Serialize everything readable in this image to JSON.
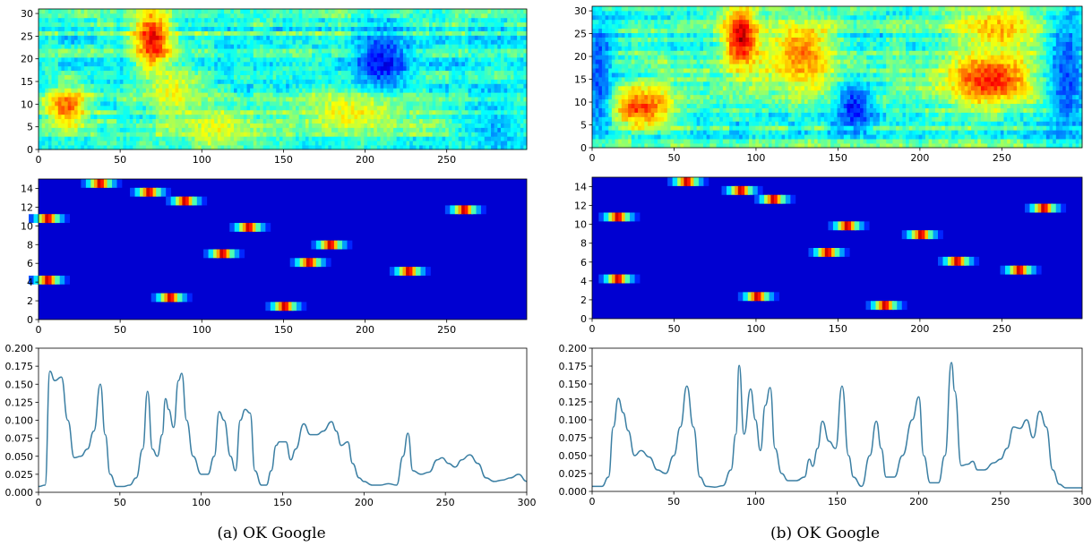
{
  "figure": {
    "captions": [
      "(a)  OK Google",
      "(b)  OK Google"
    ]
  },
  "chart_data": [
    {
      "type": "heatmap",
      "panel": "a",
      "row": "spectrogram",
      "colormap": "jet",
      "xlim": [
        0,
        299
      ],
      "ylim": [
        0,
        31
      ],
      "xticks": [
        0,
        50,
        100,
        150,
        200,
        250
      ],
      "yticks": [
        0,
        5,
        10,
        15,
        20,
        25,
        30
      ],
      "blobs": [
        {
          "x0": 5,
          "x1": 30,
          "y0": 6,
          "y1": 13,
          "v": 0.78
        },
        {
          "x0": 60,
          "x1": 80,
          "y0": 18,
          "y1": 31,
          "v": 0.88
        },
        {
          "x0": 65,
          "x1": 100,
          "y0": 8,
          "y1": 17,
          "v": 0.62
        },
        {
          "x0": 88,
          "x1": 130,
          "y0": 0,
          "y1": 8,
          "v": 0.6
        },
        {
          "x0": 195,
          "x1": 225,
          "y0": 12,
          "y1": 26,
          "v": 0.12
        },
        {
          "x0": 155,
          "x1": 230,
          "y0": 4,
          "y1": 12,
          "v": 0.62
        },
        {
          "x0": 260,
          "x1": 299,
          "y0": 0,
          "y1": 8,
          "v": 0.3
        }
      ]
    },
    {
      "type": "heatmap",
      "panel": "a",
      "row": "posterior",
      "colormap": "jet",
      "xlim": [
        0,
        299
      ],
      "ylim": [
        0,
        15
      ],
      "xticks": [
        0,
        50,
        100,
        150,
        200,
        250
      ],
      "yticks": [
        0,
        2,
        4,
        6,
        8,
        10,
        12,
        14
      ],
      "peaks": [
        {
          "x": 37,
          "y": 15
        },
        {
          "x": 67,
          "y": 14
        },
        {
          "x": 89,
          "y": 13
        },
        {
          "x": 5,
          "y": 11
        },
        {
          "x": 128,
          "y": 10
        },
        {
          "x": 178,
          "y": 8
        },
        {
          "x": 112,
          "y": 7
        },
        {
          "x": 165,
          "y": 6
        },
        {
          "x": 226,
          "y": 5
        },
        {
          "x": 5,
          "y": 4
        },
        {
          "x": 80,
          "y": 2
        },
        {
          "x": 150,
          "y": 1
        },
        {
          "x": 260,
          "y": 12
        }
      ]
    },
    {
      "type": "line",
      "panel": "a",
      "row": "confidence",
      "xlim": [
        0,
        300
      ],
      "ylim": [
        0,
        0.2
      ],
      "xticks": [
        0,
        50,
        100,
        150,
        200,
        250,
        300
      ],
      "yticks": [
        "0.000",
        "0.025",
        "0.050",
        "0.075",
        "0.100",
        "0.125",
        "0.150",
        "0.175",
        "0.200"
      ],
      "color": "#3b7fa3",
      "x": [
        0,
        4,
        7,
        10,
        14,
        18,
        22,
        26,
        30,
        34,
        38,
        41,
        44,
        48,
        52,
        56,
        60,
        64,
        67,
        70,
        73,
        76,
        78,
        80,
        83,
        86,
        88,
        91,
        95,
        100,
        104,
        108,
        111,
        114,
        118,
        121,
        124,
        127,
        130,
        133,
        137,
        140,
        143,
        146,
        148,
        152,
        155,
        158,
        163,
        167,
        171,
        175,
        180,
        183,
        186,
        190,
        193,
        197,
        200,
        205,
        210,
        215,
        220,
        224,
        227,
        230,
        235,
        240,
        245,
        248,
        252,
        256,
        260,
        265,
        270,
        275,
        280,
        285,
        290,
        295,
        300
      ],
      "y": [
        0.008,
        0.01,
        0.168,
        0.155,
        0.16,
        0.1,
        0.048,
        0.05,
        0.06,
        0.085,
        0.15,
        0.08,
        0.025,
        0.008,
        0.008,
        0.01,
        0.02,
        0.06,
        0.14,
        0.06,
        0.05,
        0.08,
        0.13,
        0.115,
        0.09,
        0.155,
        0.165,
        0.1,
        0.05,
        0.025,
        0.025,
        0.05,
        0.112,
        0.1,
        0.05,
        0.03,
        0.1,
        0.115,
        0.11,
        0.03,
        0.01,
        0.01,
        0.03,
        0.065,
        0.07,
        0.07,
        0.045,
        0.06,
        0.095,
        0.08,
        0.08,
        0.085,
        0.098,
        0.085,
        0.065,
        0.07,
        0.04,
        0.02,
        0.015,
        0.01,
        0.01,
        0.012,
        0.01,
        0.05,
        0.082,
        0.03,
        0.025,
        0.028,
        0.045,
        0.048,
        0.04,
        0.035,
        0.045,
        0.052,
        0.04,
        0.02,
        0.015,
        0.017,
        0.02,
        0.025,
        0.015
      ]
    },
    {
      "type": "heatmap",
      "panel": "b",
      "row": "spectrogram",
      "colormap": "jet",
      "xlim": [
        0,
        299
      ],
      "ylim": [
        0,
        31
      ],
      "xticks": [
        0,
        50,
        100,
        150,
        200,
        250
      ],
      "yticks": [
        0,
        5,
        10,
        15,
        20,
        25,
        30
      ],
      "blobs": [
        {
          "x0": 10,
          "x1": 50,
          "y0": 5,
          "y1": 12,
          "v": 0.82
        },
        {
          "x0": 82,
          "x1": 100,
          "y0": 18,
          "y1": 31,
          "v": 0.95
        },
        {
          "x0": 105,
          "x1": 150,
          "y0": 13,
          "y1": 28,
          "v": 0.75
        },
        {
          "x0": 215,
          "x1": 270,
          "y0": 10,
          "y1": 20,
          "v": 0.85
        },
        {
          "x0": 220,
          "x1": 275,
          "y0": 22,
          "y1": 31,
          "v": 0.7
        },
        {
          "x0": 150,
          "x1": 170,
          "y0": 4,
          "y1": 14,
          "v": 0.15
        },
        {
          "x0": 280,
          "x1": 299,
          "y0": 0,
          "y1": 31,
          "v": 0.2
        },
        {
          "x0": 0,
          "x1": 10,
          "y0": 0,
          "y1": 31,
          "v": 0.2
        }
      ]
    },
    {
      "type": "heatmap",
      "panel": "b",
      "row": "posterior",
      "colormap": "jet",
      "xlim": [
        0,
        299
      ],
      "ylim": [
        0,
        15
      ],
      "xticks": [
        0,
        50,
        100,
        150,
        200,
        250
      ],
      "yticks": [
        0,
        2,
        4,
        6,
        8,
        10,
        12,
        14
      ],
      "peaks": [
        {
          "x": 57,
          "y": 15
        },
        {
          "x": 90,
          "y": 14
        },
        {
          "x": 110,
          "y": 13
        },
        {
          "x": 275,
          "y": 12
        },
        {
          "x": 15,
          "y": 11
        },
        {
          "x": 155,
          "y": 10
        },
        {
          "x": 200,
          "y": 9
        },
        {
          "x": 143,
          "y": 7
        },
        {
          "x": 222,
          "y": 6
        },
        {
          "x": 100,
          "y": 2
        },
        {
          "x": 178,
          "y": 1
        },
        {
          "x": 15,
          "y": 4
        },
        {
          "x": 260,
          "y": 5
        }
      ]
    },
    {
      "type": "line",
      "panel": "b",
      "row": "confidence",
      "xlim": [
        0,
        300
      ],
      "ylim": [
        0,
        0.2
      ],
      "xticks": [
        0,
        50,
        100,
        150,
        200,
        250,
        300
      ],
      "yticks": [
        "0.000",
        "0.025",
        "0.050",
        "0.075",
        "0.100",
        "0.125",
        "0.150",
        "0.175",
        "0.200"
      ],
      "color": "#3b7fa3",
      "x": [
        0,
        6,
        10,
        13,
        16,
        19,
        22,
        26,
        30,
        35,
        40,
        45,
        50,
        54,
        58,
        62,
        66,
        70,
        75,
        80,
        85,
        88,
        90,
        93,
        97,
        100,
        103,
        106,
        109,
        112,
        116,
        120,
        125,
        130,
        133,
        135,
        138,
        141,
        145,
        149,
        153,
        157,
        160,
        165,
        170,
        174,
        177,
        180,
        185,
        190,
        196,
        200,
        203,
        207,
        212,
        216,
        220,
        222,
        226,
        230,
        233,
        236,
        240,
        246,
        250,
        254,
        258,
        262,
        266,
        270,
        274,
        278,
        282,
        286,
        290,
        295,
        300
      ],
      "y": [
        0.007,
        0.007,
        0.02,
        0.09,
        0.13,
        0.11,
        0.085,
        0.05,
        0.057,
        0.048,
        0.03,
        0.025,
        0.05,
        0.09,
        0.147,
        0.09,
        0.02,
        0.007,
        0.006,
        0.008,
        0.03,
        0.08,
        0.176,
        0.08,
        0.143,
        0.1,
        0.057,
        0.12,
        0.145,
        0.06,
        0.025,
        0.015,
        0.015,
        0.02,
        0.045,
        0.035,
        0.06,
        0.098,
        0.07,
        0.06,
        0.147,
        0.05,
        0.02,
        0.007,
        0.05,
        0.098,
        0.06,
        0.02,
        0.02,
        0.05,
        0.1,
        0.132,
        0.05,
        0.012,
        0.012,
        0.05,
        0.18,
        0.14,
        0.036,
        0.038,
        0.042,
        0.03,
        0.03,
        0.04,
        0.045,
        0.06,
        0.09,
        0.088,
        0.1,
        0.075,
        0.112,
        0.09,
        0.03,
        0.01,
        0.005,
        0.005,
        0.005
      ]
    }
  ]
}
